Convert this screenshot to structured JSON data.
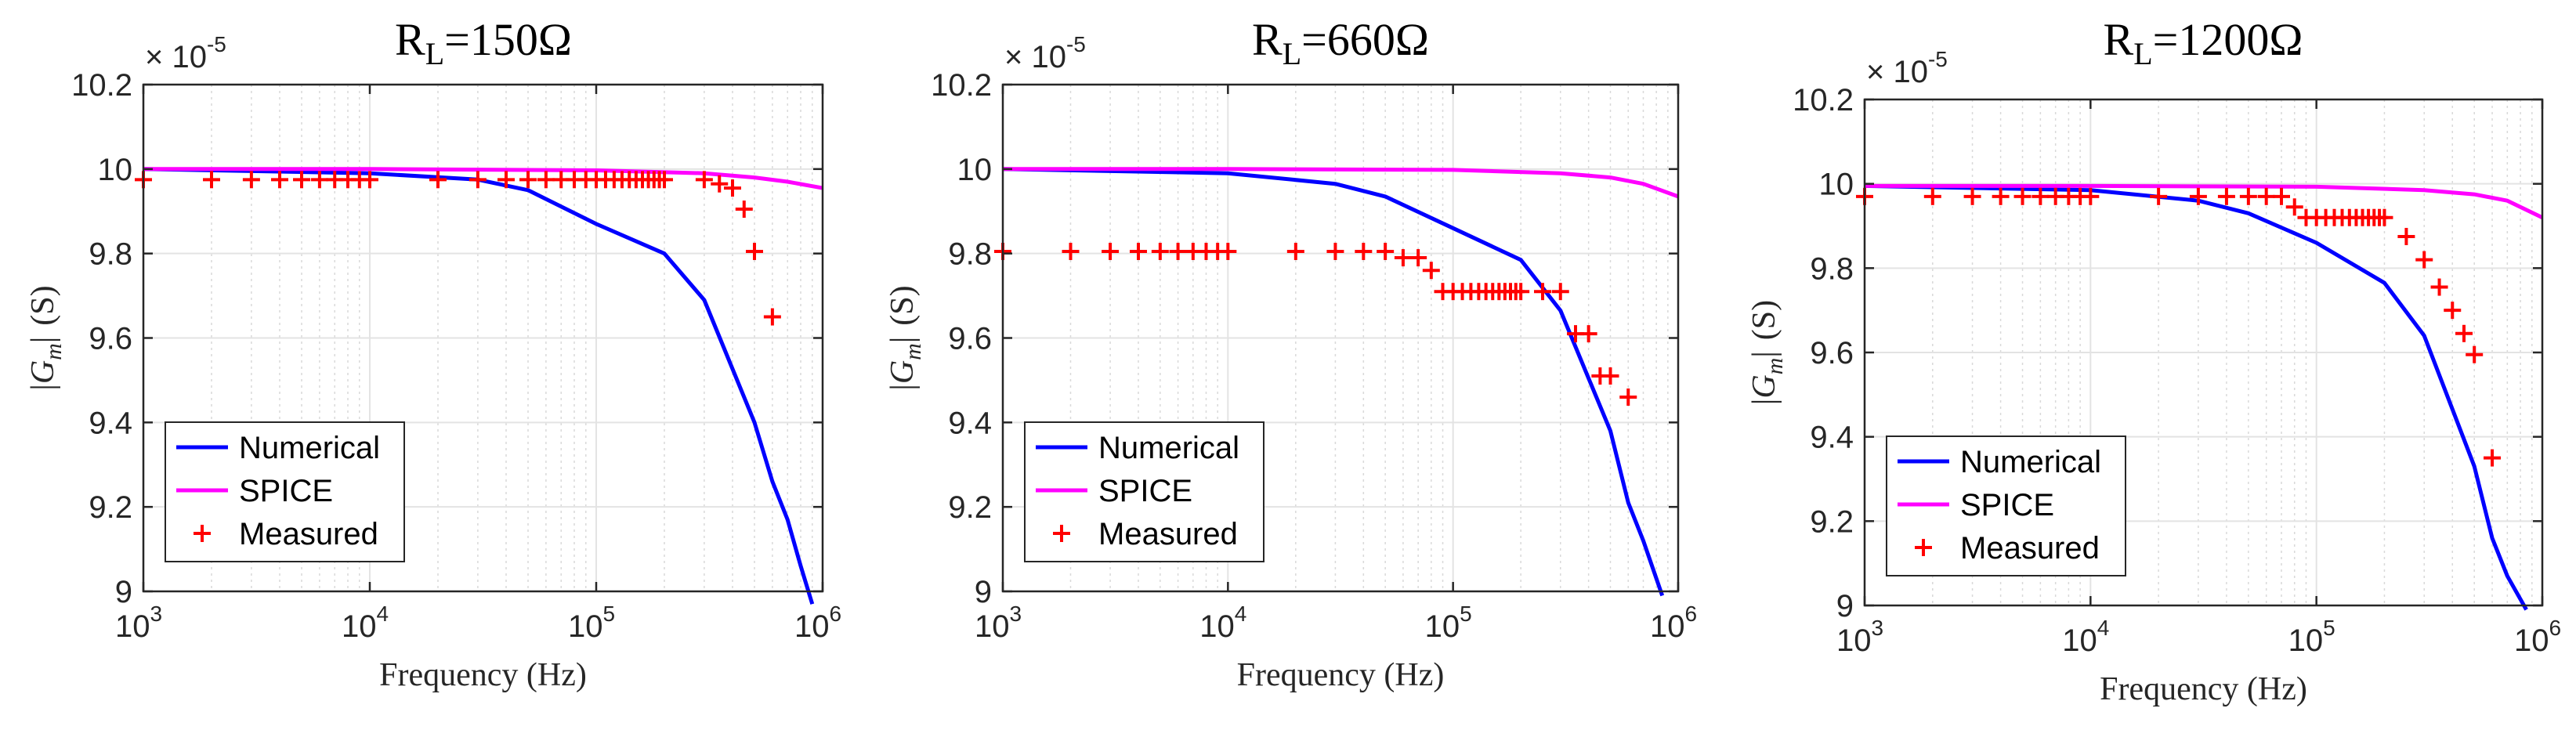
{
  "chart_data": [
    {
      "type": "line",
      "title_main": "R",
      "title_sub": "L",
      "title_tail": "=150Ω",
      "xlabel": "Frequency (Hz)",
      "ylabel_inner": "G",
      "ylabel_sub": "m",
      "ylabel_unit": "(S)",
      "xscale": "log",
      "xlim": [
        1000,
        1000000
      ],
      "ylim": [
        9.0,
        10.2
      ],
      "y_multiplier": "× 10",
      "y_exponent": "-5",
      "grid": true,
      "legend_position": "bottom-left",
      "x_ticks": [
        {
          "v": 1000,
          "base": "10",
          "exp": "3"
        },
        {
          "v": 10000,
          "base": "10",
          "exp": "4"
        },
        {
          "v": 100000,
          "base": "10",
          "exp": "5"
        },
        {
          "v": 1000000,
          "base": "10",
          "exp": "6"
        }
      ],
      "y_ticks": [
        {
          "v": 9.0,
          "label": "9"
        },
        {
          "v": 9.2,
          "label": "9.2"
        },
        {
          "v": 9.4,
          "label": "9.4"
        },
        {
          "v": 9.6,
          "label": "9.6"
        },
        {
          "v": 9.8,
          "label": "9.8"
        },
        {
          "v": 10.0,
          "label": "10"
        },
        {
          "v": 10.2,
          "label": "10.2"
        }
      ],
      "series": [
        {
          "name": "Numerical",
          "style": "line",
          "color": "#0000ff",
          "x": [
            1000,
            10000,
            30000,
            50000,
            100000,
            200000,
            300000,
            500000,
            600000,
            700000,
            800000,
            900000
          ],
          "y": [
            10.0,
            9.99,
            9.975,
            9.95,
            9.87,
            9.8,
            9.69,
            9.4,
            9.26,
            9.17,
            9.06,
            8.97
          ]
        },
        {
          "name": "SPICE",
          "style": "line",
          "color": "#ff00ff",
          "x": [
            1000,
            10000,
            100000,
            300000,
            500000,
            700000,
            1000000
          ],
          "y": [
            10.0,
            10.0,
            9.997,
            9.99,
            9.98,
            9.97,
            9.955
          ]
        },
        {
          "name": "Measured",
          "style": "marker",
          "color": "#ff0000",
          "x": [
            1000,
            2000,
            3000,
            4000,
            5000,
            6000,
            7000,
            8000,
            9000,
            10000,
            20000,
            30000,
            40000,
            50000,
            60000,
            70000,
            80000,
            90000,
            100000,
            110000,
            120000,
            130000,
            140000,
            150000,
            160000,
            170000,
            180000,
            190000,
            200000,
            300000,
            350000,
            400000,
            450000,
            500000,
            600000
          ],
          "y": [
            9.975,
            9.975,
            9.975,
            9.975,
            9.975,
            9.975,
            9.975,
            9.975,
            9.975,
            9.975,
            9.975,
            9.975,
            9.975,
            9.975,
            9.975,
            9.975,
            9.975,
            9.975,
            9.975,
            9.975,
            9.975,
            9.975,
            9.975,
            9.975,
            9.975,
            9.975,
            9.975,
            9.975,
            9.975,
            9.975,
            9.965,
            9.955,
            9.905,
            9.805,
            9.65
          ]
        }
      ]
    },
    {
      "type": "line",
      "title_main": "R",
      "title_sub": "L",
      "title_tail": "=660Ω",
      "xlabel": "Frequency (Hz)",
      "ylabel_inner": "G",
      "ylabel_sub": "m",
      "ylabel_unit": "(S)",
      "xscale": "log",
      "xlim": [
        1000,
        1000000
      ],
      "ylim": [
        9.0,
        10.2
      ],
      "y_multiplier": "× 10",
      "y_exponent": "-5",
      "grid": true,
      "legend_position": "bottom-left",
      "x_ticks": [
        {
          "v": 1000,
          "base": "10",
          "exp": "3"
        },
        {
          "v": 10000,
          "base": "10",
          "exp": "4"
        },
        {
          "v": 100000,
          "base": "10",
          "exp": "5"
        },
        {
          "v": 1000000,
          "base": "10",
          "exp": "6"
        }
      ],
      "y_ticks": [
        {
          "v": 9.0,
          "label": "9"
        },
        {
          "v": 9.2,
          "label": "9.2"
        },
        {
          "v": 9.4,
          "label": "9.4"
        },
        {
          "v": 9.6,
          "label": "9.6"
        },
        {
          "v": 9.8,
          "label": "9.8"
        },
        {
          "v": 10.0,
          "label": "10"
        },
        {
          "v": 10.2,
          "label": "10.2"
        }
      ],
      "series": [
        {
          "name": "Numerical",
          "style": "line",
          "color": "#0000ff",
          "x": [
            1000,
            10000,
            30000,
            50000,
            100000,
            200000,
            300000,
            500000,
            600000,
            700000,
            850000
          ],
          "y": [
            10.0,
            9.99,
            9.965,
            9.935,
            9.86,
            9.785,
            9.665,
            9.38,
            9.21,
            9.12,
            8.99
          ]
        },
        {
          "name": "SPICE",
          "style": "line",
          "color": "#ff00ff",
          "x": [
            1000,
            10000,
            100000,
            300000,
            500000,
            700000,
            1000000
          ],
          "y": [
            10.0,
            10.0,
            9.998,
            9.99,
            9.98,
            9.965,
            9.935
          ]
        },
        {
          "name": "Measured",
          "style": "marker",
          "color": "#ff0000",
          "x": [
            1000,
            2000,
            3000,
            4000,
            5000,
            6000,
            7000,
            8000,
            9000,
            10000,
            20000,
            30000,
            40000,
            50000,
            60000,
            70000,
            80000,
            90000,
            100000,
            110000,
            120000,
            130000,
            140000,
            150000,
            160000,
            170000,
            180000,
            190000,
            200000,
            250000,
            300000,
            350000,
            400000,
            450000,
            500000,
            600000
          ],
          "y": [
            9.805,
            9.805,
            9.805,
            9.805,
            9.805,
            9.805,
            9.805,
            9.805,
            9.805,
            9.805,
            9.805,
            9.805,
            9.805,
            9.805,
            9.79,
            9.79,
            9.76,
            9.71,
            9.71,
            9.71,
            9.71,
            9.71,
            9.71,
            9.71,
            9.71,
            9.71,
            9.71,
            9.71,
            9.71,
            9.71,
            9.71,
            9.61,
            9.61,
            9.51,
            9.51,
            9.46
          ]
        }
      ]
    },
    {
      "type": "line",
      "title_main": "R",
      "title_sub": "L",
      "title_tail": "=1200Ω",
      "xlabel": "Frequency (Hz)",
      "ylabel_inner": "G",
      "ylabel_sub": "m",
      "ylabel_unit": "(S)",
      "xscale": "log",
      "xlim": [
        1000,
        1000000
      ],
      "ylim": [
        9.0,
        10.2
      ],
      "y_multiplier": "× 10",
      "y_exponent": "-5",
      "grid": true,
      "legend_position": "bottom-left",
      "x_ticks": [
        {
          "v": 1000,
          "base": "10",
          "exp": "3"
        },
        {
          "v": 10000,
          "base": "10",
          "exp": "4"
        },
        {
          "v": 100000,
          "base": "10",
          "exp": "5"
        },
        {
          "v": 1000000,
          "base": "10",
          "exp": "6"
        }
      ],
      "y_ticks": [
        {
          "v": 9.0,
          "label": "9"
        },
        {
          "v": 9.2,
          "label": "9.2"
        },
        {
          "v": 9.4,
          "label": "9.4"
        },
        {
          "v": 9.6,
          "label": "9.6"
        },
        {
          "v": 9.8,
          "label": "9.8"
        },
        {
          "v": 10.0,
          "label": "10"
        },
        {
          "v": 10.2,
          "label": "10.2"
        }
      ],
      "series": [
        {
          "name": "Numerical",
          "style": "line",
          "color": "#0000ff",
          "x": [
            1000,
            10000,
            30000,
            50000,
            100000,
            200000,
            300000,
            500000,
            600000,
            700000,
            850000
          ],
          "y": [
            9.995,
            9.985,
            9.96,
            9.93,
            9.86,
            9.765,
            9.64,
            9.33,
            9.16,
            9.07,
            8.99
          ]
        },
        {
          "name": "SPICE",
          "style": "line",
          "color": "#ff00ff",
          "x": [
            1000,
            10000,
            100000,
            300000,
            500000,
            700000,
            1000000
          ],
          "y": [
            9.995,
            9.995,
            9.993,
            9.985,
            9.975,
            9.96,
            9.92
          ]
        },
        {
          "name": "Measured",
          "style": "marker",
          "color": "#ff0000",
          "x": [
            1000,
            2000,
            3000,
            4000,
            5000,
            6000,
            7000,
            8000,
            9000,
            10000,
            20000,
            30000,
            40000,
            50000,
            60000,
            70000,
            80000,
            90000,
            100000,
            110000,
            120000,
            130000,
            140000,
            150000,
            160000,
            170000,
            180000,
            190000,
            200000,
            250000,
            300000,
            350000,
            400000,
            450000,
            500000,
            600000
          ],
          "y": [
            9.97,
            9.97,
            9.97,
            9.97,
            9.97,
            9.97,
            9.97,
            9.97,
            9.97,
            9.97,
            9.97,
            9.97,
            9.97,
            9.97,
            9.97,
            9.97,
            9.945,
            9.92,
            9.92,
            9.92,
            9.92,
            9.92,
            9.92,
            9.92,
            9.92,
            9.92,
            9.92,
            9.92,
            9.92,
            9.875,
            9.82,
            9.755,
            9.7,
            9.645,
            9.595,
            9.35
          ]
        }
      ]
    }
  ]
}
